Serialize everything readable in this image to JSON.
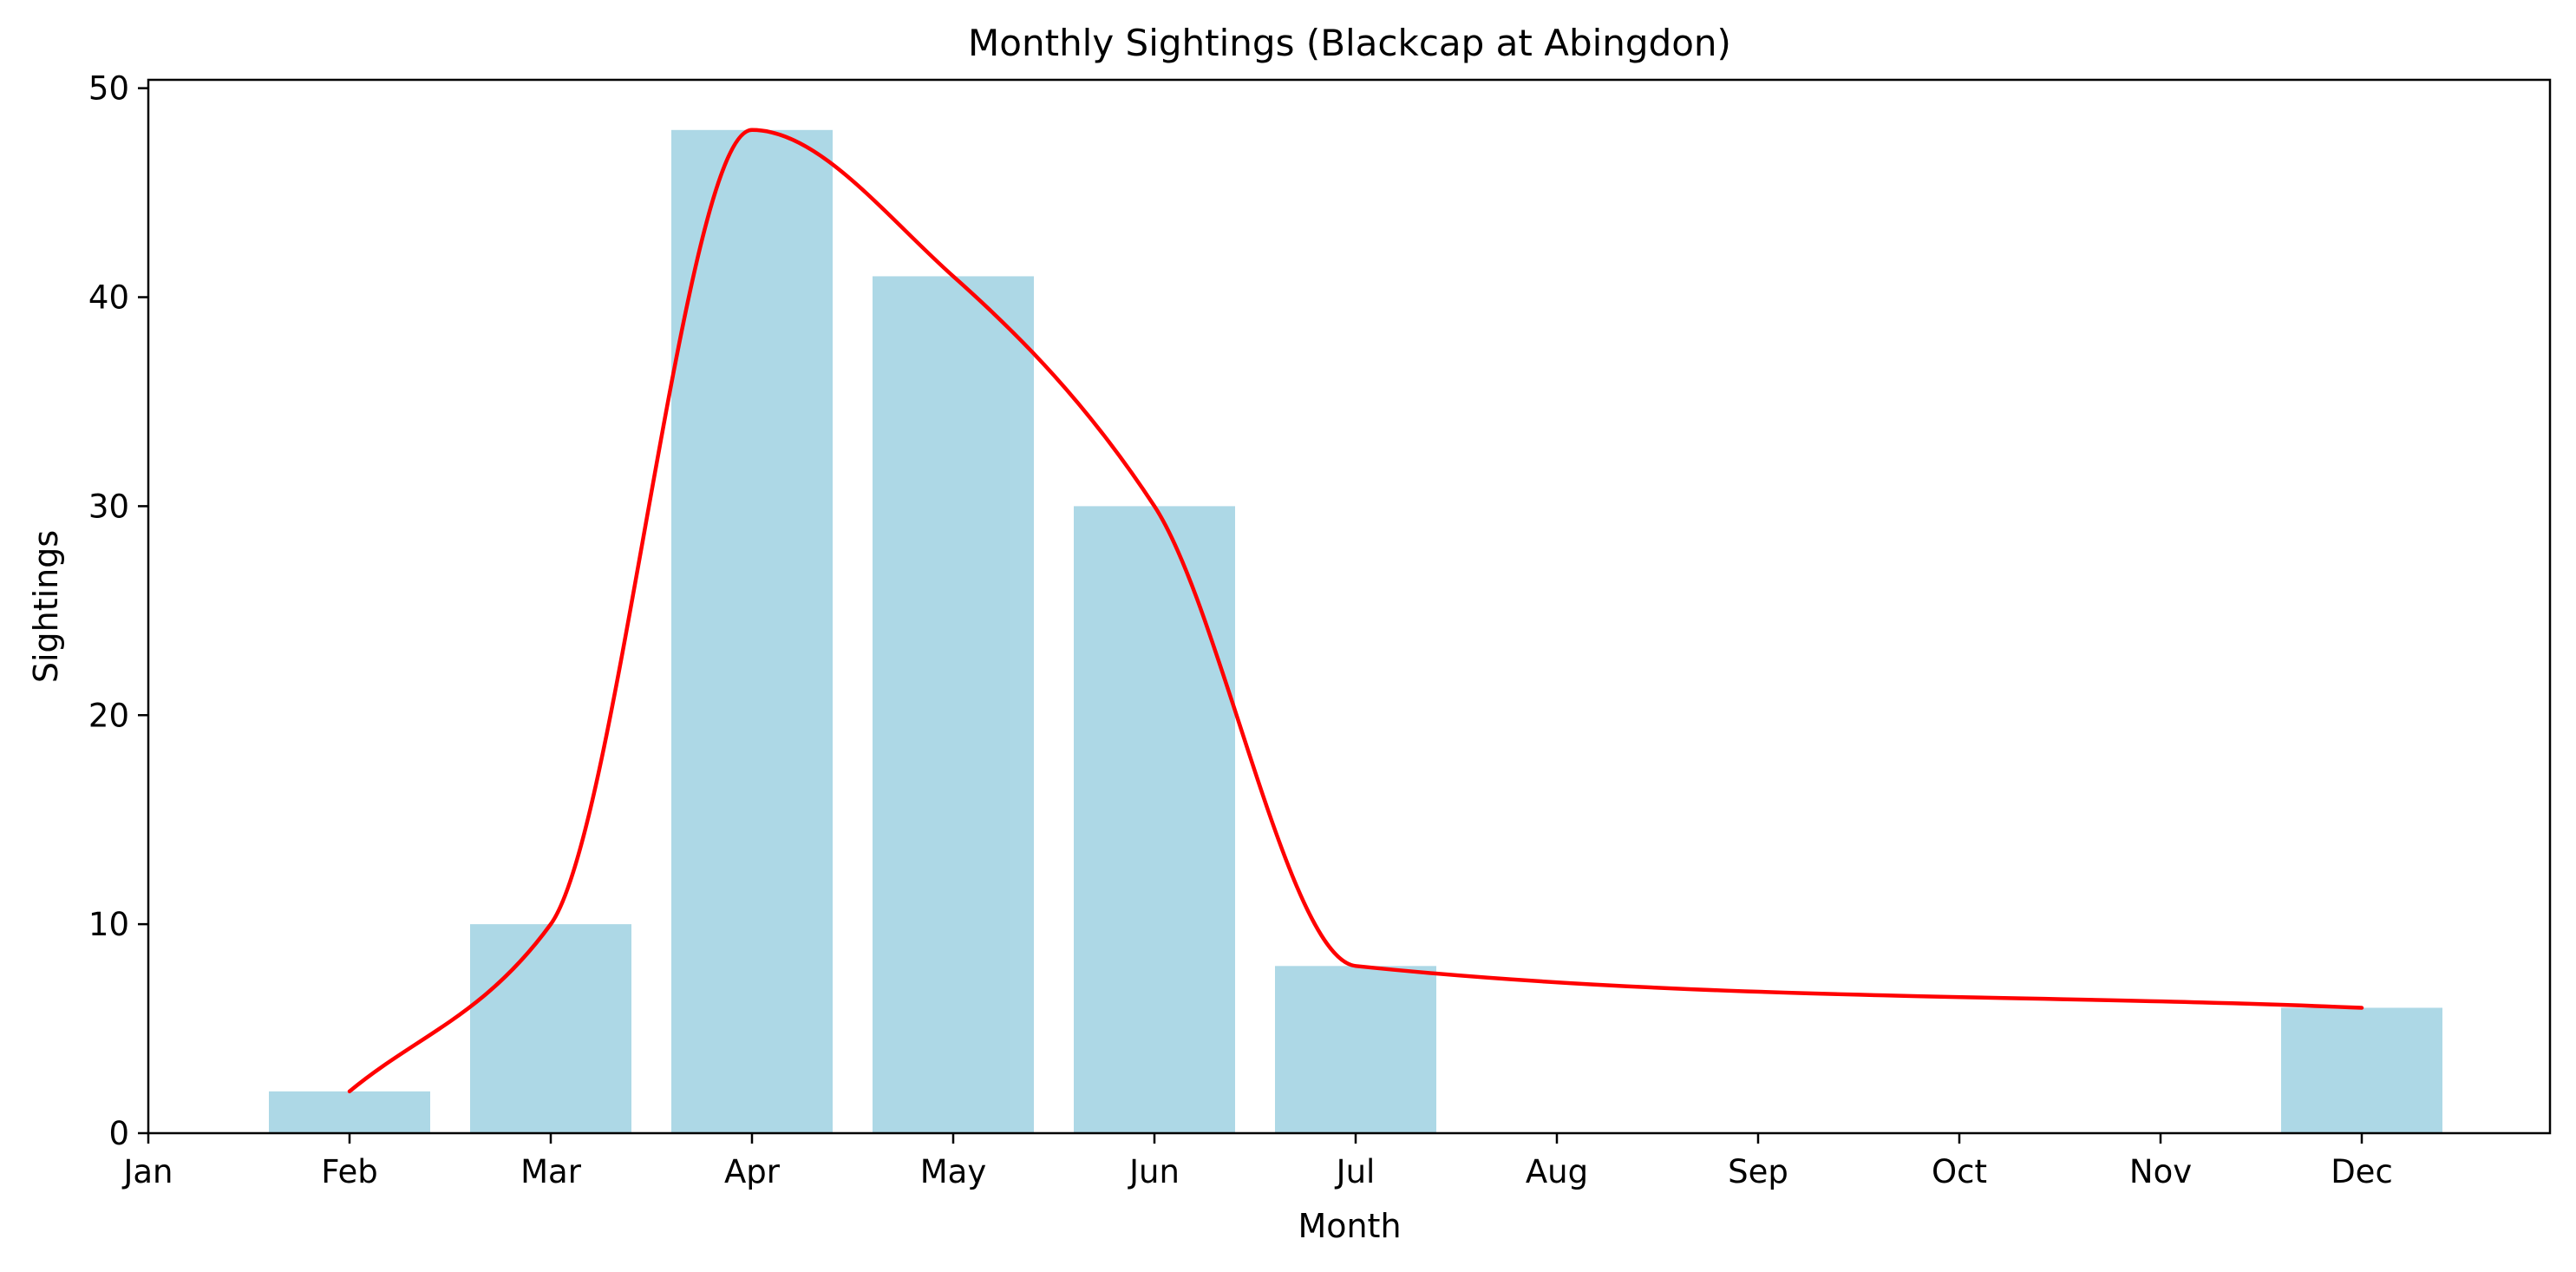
{
  "chart_data": {
    "type": "bar",
    "title": "Monthly Sightings (Blackcap at Abingdon)",
    "xlabel": "Month",
    "ylabel": "Sightings",
    "categories": [
      "Jan",
      "Feb",
      "Mar",
      "Apr",
      "May",
      "Jun",
      "Jul",
      "Aug",
      "Sep",
      "Oct",
      "Nov",
      "Dec"
    ],
    "values": [
      0,
      2,
      10,
      48,
      41,
      30,
      8,
      0,
      0,
      0,
      0,
      6
    ],
    "ylim": [
      0,
      50.4
    ],
    "yticks": [
      0,
      10,
      20,
      30,
      40,
      50
    ],
    "grid": false,
    "colors": {
      "bars": "#add8e6",
      "trend_line": "#ff0000"
    },
    "trend_line": {
      "type": "line",
      "smooth": true,
      "x": [
        "Feb",
        "Mar",
        "Apr",
        "May",
        "Jun",
        "Jul",
        "Dec"
      ],
      "y": [
        2,
        10,
        48,
        41,
        30,
        8,
        6
      ]
    }
  }
}
